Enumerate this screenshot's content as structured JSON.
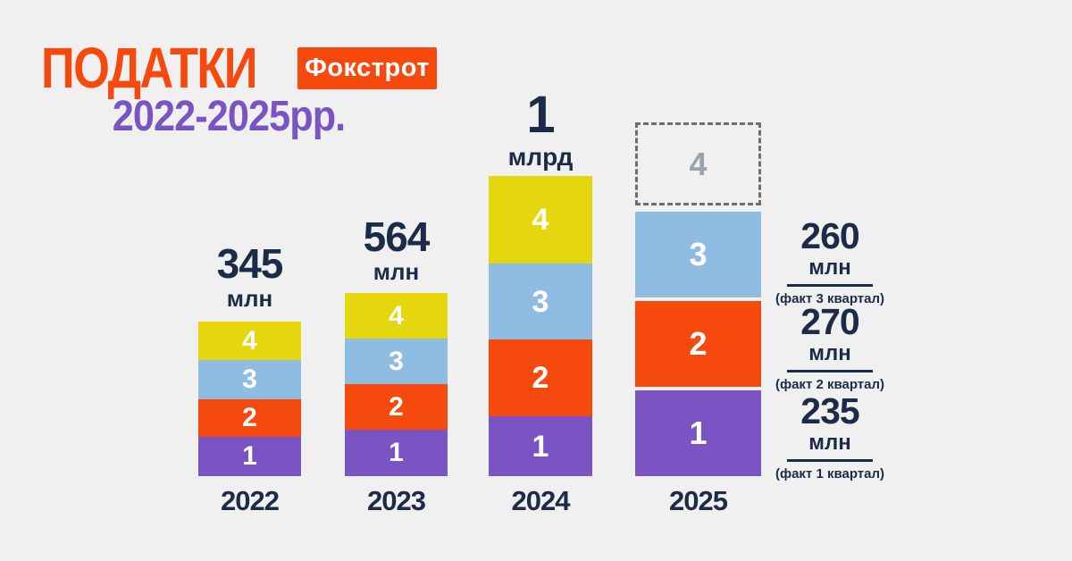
{
  "header": {
    "title": "ПОДАТКИ",
    "brand_badge": "Фокстрот",
    "subtitle": "2022-2025рр."
  },
  "colors": {
    "background": "#F0F0F1",
    "orange": "#F5490D",
    "purple": "#7B54C4",
    "blue": "#8FBCE3",
    "yellow": "#E6D60D",
    "navy": "#1C2B47",
    "dash-gray": "#6E6E6E",
    "ghost-gray": "#9CA3AB"
  },
  "chart_data": {
    "type": "bar",
    "stacked": true,
    "title": "ПОДАТКИ 2022-2025рр.",
    "brand": "Фокстрот",
    "categories": [
      "2022",
      "2023",
      "2024",
      "2025"
    ],
    "segment_labels_bottom_to_top": [
      "1",
      "2",
      "3",
      "4"
    ],
    "segment_colors_bottom_to_top": [
      "#7B54C4",
      "#F5490D",
      "#8FBCE3",
      "#E6D60D"
    ],
    "annual_totals": [
      {
        "year": "2022",
        "value": 345,
        "unit": "млн"
      },
      {
        "year": "2023",
        "value": 564,
        "unit": "млн"
      },
      {
        "year": "2024",
        "value": 1,
        "unit": "млрд"
      }
    ],
    "year_2025_quarters": [
      {
        "quarter": "1",
        "value": 235,
        "unit": "млн",
        "note": "(факт 1 квартал)"
      },
      {
        "quarter": "2",
        "value": 270,
        "unit": "млн",
        "note": "(факт 2 квартал)"
      },
      {
        "quarter": "3",
        "value": 260,
        "unit": "млн",
        "note": "(факт 3 квартал)"
      },
      {
        "quarter": "4",
        "value": null,
        "style": "dashed-outline-projected"
      }
    ],
    "grid": false,
    "legend_position": "none"
  },
  "bars": [
    {
      "year": "2022",
      "total_value": "345",
      "total_unit": "млн",
      "segments": [
        {
          "label": "4"
        },
        {
          "label": "3"
        },
        {
          "label": "2"
        },
        {
          "label": "1"
        }
      ]
    },
    {
      "year": "2023",
      "total_value": "564",
      "total_unit": "млн",
      "segments": [
        {
          "label": "4"
        },
        {
          "label": "3"
        },
        {
          "label": "2"
        },
        {
          "label": "1"
        }
      ]
    },
    {
      "year": "2024",
      "total_value": "1",
      "total_unit": "млрд",
      "segments": [
        {
          "label": "4"
        },
        {
          "label": "3"
        },
        {
          "label": "2"
        },
        {
          "label": "1"
        }
      ]
    },
    {
      "year": "2025",
      "projected_label": "4",
      "segments": [
        {
          "label": "3"
        },
        {
          "label": "2"
        },
        {
          "label": "1"
        }
      ]
    }
  ],
  "annotations": [
    {
      "value": "260",
      "unit": "млн",
      "note": "(факт 3 квартал)"
    },
    {
      "value": "270",
      "unit": "млн",
      "note": "(факт 2 квартал)"
    },
    {
      "value": "235",
      "unit": "млн",
      "note": "(факт 1 квартал)"
    }
  ]
}
